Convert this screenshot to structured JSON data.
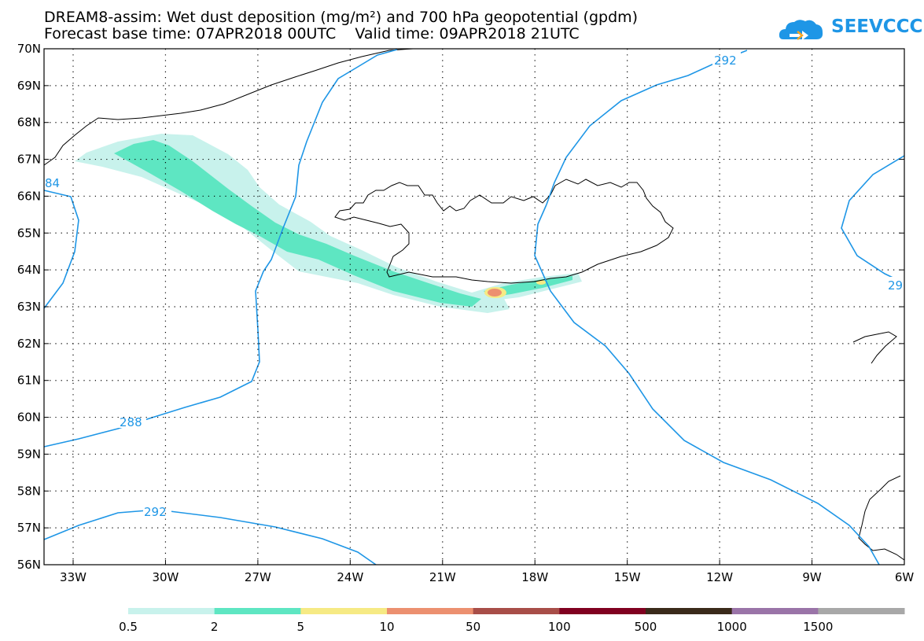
{
  "title": {
    "line1": "DREAM8-assim: Wet dust deposition (mg/m²) and 700 hPa geopotential (gpdm)",
    "line2": "Forecast base time: 07APR2018 00UTC    Valid time: 09APR2018 21UTC"
  },
  "logo": {
    "text": "SEEVCCC",
    "icon": "cloud-arrow-icon",
    "color": "#1e96e6"
  },
  "map": {
    "lat_labels": [
      "70N",
      "69N",
      "68N",
      "67N",
      "66N",
      "65N",
      "64N",
      "63N",
      "62N",
      "61N",
      "60N",
      "59N",
      "58N",
      "57N",
      "56N"
    ],
    "lon_labels": [
      "33W",
      "30W",
      "27W",
      "24W",
      "21W",
      "18W",
      "15W",
      "12W",
      "9W",
      "6W"
    ],
    "contour_color": "#1e96e6",
    "contour_labels": [
      "292",
      "84",
      "29",
      "288",
      "292"
    ]
  },
  "legend": {
    "labels": [
      "0.5",
      "2",
      "5",
      "10",
      "50",
      "100",
      "500",
      "1000",
      "1500"
    ],
    "colors": [
      "#c8f2ec",
      "#5ee6c2",
      "#f6ea84",
      "#ec9070",
      "#a84e48",
      "#800020",
      "#3a2a1a",
      "#9a74a8",
      "#a8a8a8"
    ]
  }
}
